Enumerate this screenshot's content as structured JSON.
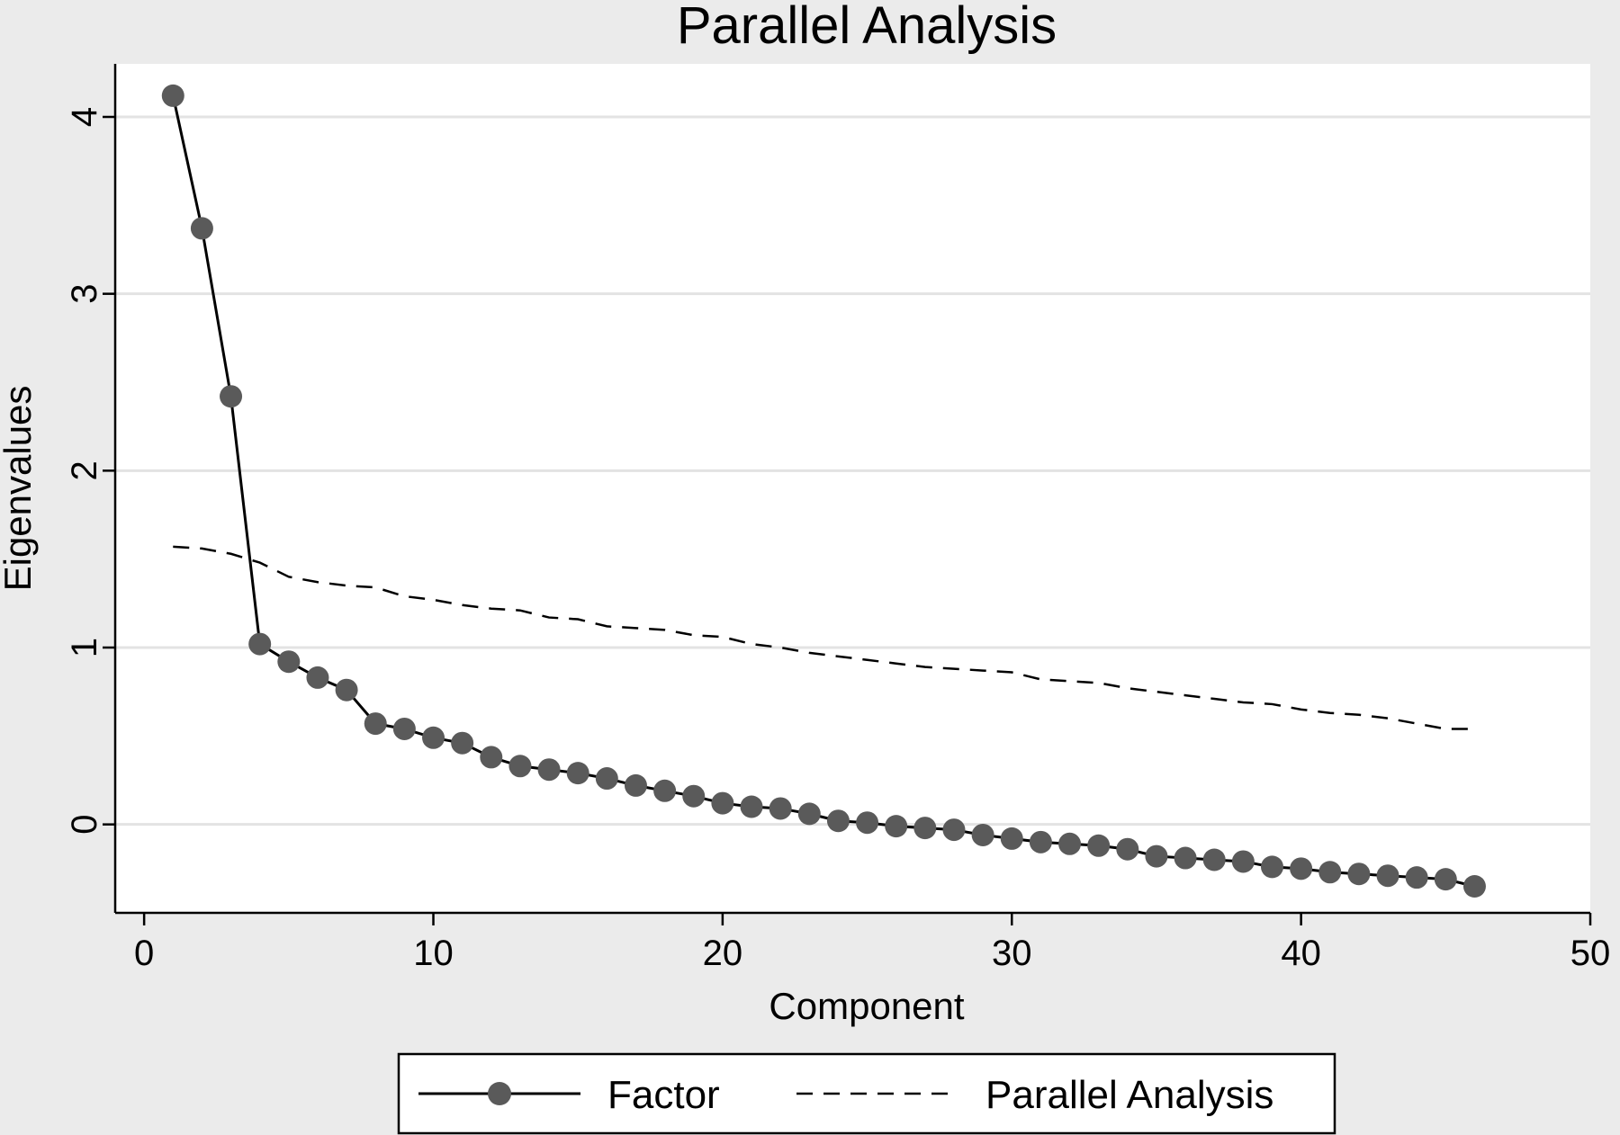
{
  "chart_data": {
    "type": "line",
    "title": "Parallel Analysis",
    "xlabel": "Component",
    "ylabel": "Eigenvalues",
    "xlim": [
      -1,
      50
    ],
    "ylim": [
      -0.5,
      4.3
    ],
    "x_ticks": [
      0,
      10,
      20,
      30,
      40,
      50
    ],
    "y_ticks": [
      0,
      1,
      2,
      3,
      4
    ],
    "grid": "horizontal",
    "legend_position": "bottom",
    "colors": {
      "background": "#ebebeb",
      "plot_area": "#ffffff",
      "gridline": "#e3e3e3",
      "factor_line": "#000000",
      "factor_marker": "#5a5a5a",
      "parallel_line": "#000000"
    },
    "series": [
      {
        "name": "Factor",
        "style": "solid-with-markers",
        "x": [
          1,
          2,
          3,
          4,
          5,
          6,
          7,
          8,
          9,
          10,
          11,
          12,
          13,
          14,
          15,
          16,
          17,
          18,
          19,
          20,
          21,
          22,
          23,
          24,
          25,
          26,
          27,
          28,
          29,
          30,
          31,
          32,
          33,
          34,
          35,
          36,
          37,
          38,
          39,
          40,
          41,
          42,
          43,
          44,
          45,
          46
        ],
        "values": [
          4.12,
          3.37,
          2.42,
          1.02,
          0.92,
          0.83,
          0.76,
          0.57,
          0.54,
          0.49,
          0.46,
          0.38,
          0.33,
          0.31,
          0.29,
          0.26,
          0.22,
          0.19,
          0.16,
          0.12,
          0.1,
          0.09,
          0.06,
          0.02,
          0.01,
          -0.01,
          -0.02,
          -0.03,
          -0.06,
          -0.08,
          -0.1,
          -0.11,
          -0.12,
          -0.14,
          -0.18,
          -0.19,
          -0.2,
          -0.21,
          -0.24,
          -0.25,
          -0.27,
          -0.28,
          -0.29,
          -0.3,
          -0.31,
          -0.35
        ]
      },
      {
        "name": "Parallel Analysis",
        "style": "dashed",
        "x": [
          1,
          2,
          3,
          4,
          5,
          6,
          7,
          8,
          9,
          10,
          11,
          12,
          13,
          14,
          15,
          16,
          17,
          18,
          19,
          20,
          21,
          22,
          23,
          24,
          25,
          26,
          27,
          28,
          29,
          30,
          31,
          32,
          33,
          34,
          35,
          36,
          37,
          38,
          39,
          40,
          41,
          42,
          43,
          44,
          45,
          46
        ],
        "values": [
          1.57,
          1.56,
          1.53,
          1.48,
          1.4,
          1.37,
          1.35,
          1.34,
          1.29,
          1.27,
          1.24,
          1.22,
          1.21,
          1.17,
          1.16,
          1.12,
          1.11,
          1.1,
          1.07,
          1.06,
          1.02,
          1.0,
          0.97,
          0.95,
          0.93,
          0.91,
          0.89,
          0.88,
          0.87,
          0.86,
          0.82,
          0.81,
          0.8,
          0.77,
          0.75,
          0.73,
          0.71,
          0.69,
          0.68,
          0.65,
          0.63,
          0.62,
          0.6,
          0.57,
          0.54,
          0.54
        ]
      }
    ]
  }
}
